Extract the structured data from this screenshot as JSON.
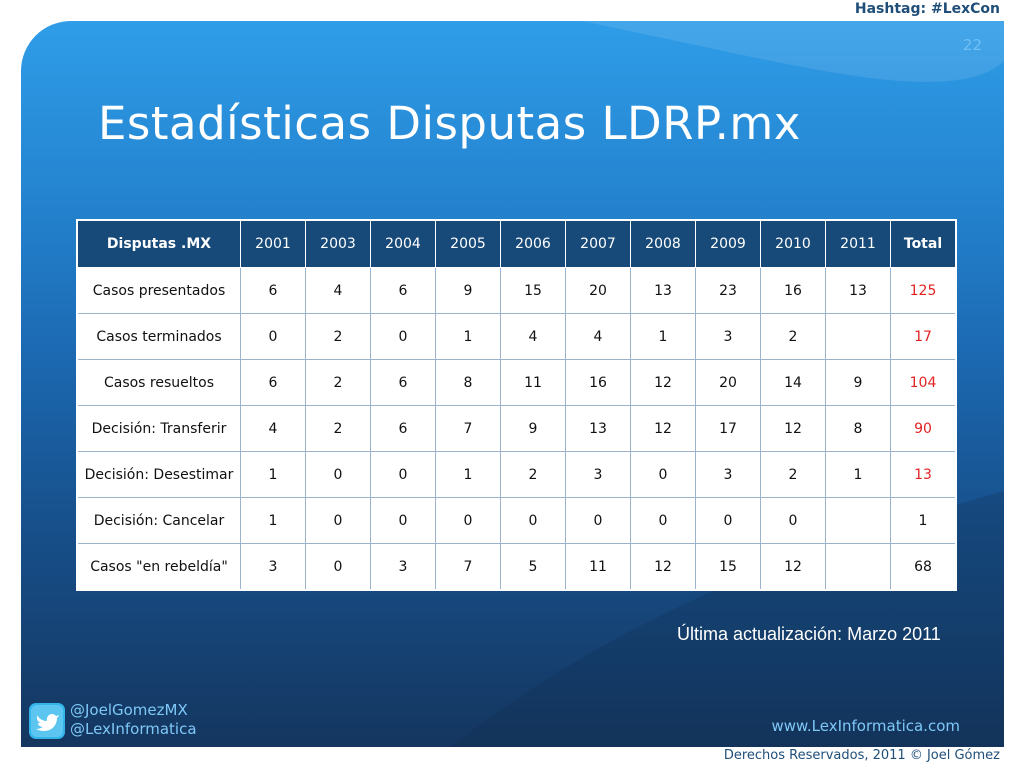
{
  "header": {
    "hashtag": "Hashtag: #LexCon"
  },
  "slide": {
    "number": "22",
    "title": "Estadísticas Disputas LDRP.mx",
    "update_note": "Última actualización: Marzo 2011"
  },
  "table": {
    "header_label": "Disputas .MX",
    "years": [
      "2001",
      "2003",
      "2004",
      "2005",
      "2006",
      "2007",
      "2008",
      "2009",
      "2010",
      "2011"
    ],
    "total_label": "Total",
    "rows": [
      {
        "label": "Casos presentados",
        "values": [
          "6",
          "4",
          "6",
          "9",
          "15",
          "20",
          "13",
          "23",
          "16",
          "13"
        ],
        "total": "125"
      },
      {
        "label": "Casos terminados",
        "values": [
          "0",
          "2",
          "0",
          "1",
          "4",
          "4",
          "1",
          "3",
          "2",
          ""
        ],
        "total": "17"
      },
      {
        "label": "Casos resueltos",
        "values": [
          "6",
          "2",
          "6",
          "8",
          "11",
          "16",
          "12",
          "20",
          "14",
          "9"
        ],
        "total": "104"
      },
      {
        "label": "Decisión: Transferir",
        "values": [
          "4",
          "2",
          "6",
          "7",
          "9",
          "13",
          "12",
          "17",
          "12",
          "8"
        ],
        "total": "90"
      },
      {
        "label": "Decisión: Desestimar",
        "values": [
          "1",
          "0",
          "0",
          "1",
          "2",
          "3",
          "0",
          "3",
          "2",
          "1"
        ],
        "total": "13"
      },
      {
        "label": "Decisión: Cancelar",
        "values": [
          "1",
          "0",
          "0",
          "0",
          "0",
          "0",
          "0",
          "0",
          "0",
          ""
        ],
        "total": "1"
      },
      {
        "label": "Casos \"en rebeldía\"",
        "values": [
          "3",
          "0",
          "3",
          "7",
          "5",
          "11",
          "12",
          "15",
          "12",
          ""
        ],
        "total": "68"
      }
    ]
  },
  "footer": {
    "twitter_icon": "twitter-bird-icon",
    "handle_1": "@JoelGomezMX",
    "handle_2": "@LexInformatica",
    "website": "www.LexInformatica.com",
    "copyright": "Derechos Reservados, 2011 © Joel Gómez"
  },
  "colors": {
    "background_top": "#2f9de8",
    "background_bottom": "#14365f",
    "table_header": "#174a78",
    "highlight_total": "#e22222",
    "footer_text": "#7ec8f7"
  }
}
